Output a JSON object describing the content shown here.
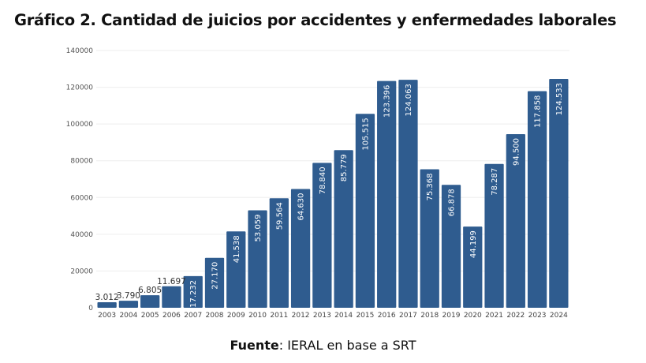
{
  "title": "Gráfico 2. Cantidad de juicios por accidentes y enfermedades laborales",
  "source": {
    "label": "Fuente",
    "text": ": IERAL en base a SRT"
  },
  "colors": {
    "bar": "#2f5c8f",
    "grid": "#eeeeee"
  },
  "chart_data": {
    "type": "bar",
    "title": "Gráfico 2. Cantidad de juicios por accidentes y enfermedades laborales",
    "xlabel": "",
    "ylabel": "",
    "ylim": [
      0,
      140000
    ],
    "yticks": [
      0,
      20000,
      40000,
      60000,
      80000,
      100000,
      120000,
      140000
    ],
    "grid": true,
    "categories": [
      "2003",
      "2004",
      "2005",
      "2006",
      "2007",
      "2008",
      "2009",
      "2010",
      "2011",
      "2012",
      "2013",
      "2014",
      "2015",
      "2016",
      "2017",
      "2018",
      "2019",
      "2020",
      "2021",
      "2022",
      "2023",
      "2024"
    ],
    "values": [
      3012,
      3790,
      6805,
      11697,
      17232,
      27170,
      41538,
      53059,
      59564,
      64630,
      78840,
      85779,
      105515,
      123396,
      124063,
      75368,
      66878,
      44199,
      78287,
      94500,
      117858,
      124533
    ],
    "data_labels": [
      "3.012",
      "3.790",
      "6.805",
      "11.697",
      "17.232",
      "27.170",
      "41.538",
      "53.059",
      "59.564",
      "64.630",
      "78.840",
      "85.779",
      "105.515",
      "123.396",
      "124.063",
      "75.368",
      "66.878",
      "44.199",
      "78.287",
      "94.500",
      "117.858",
      "124.533"
    ]
  }
}
